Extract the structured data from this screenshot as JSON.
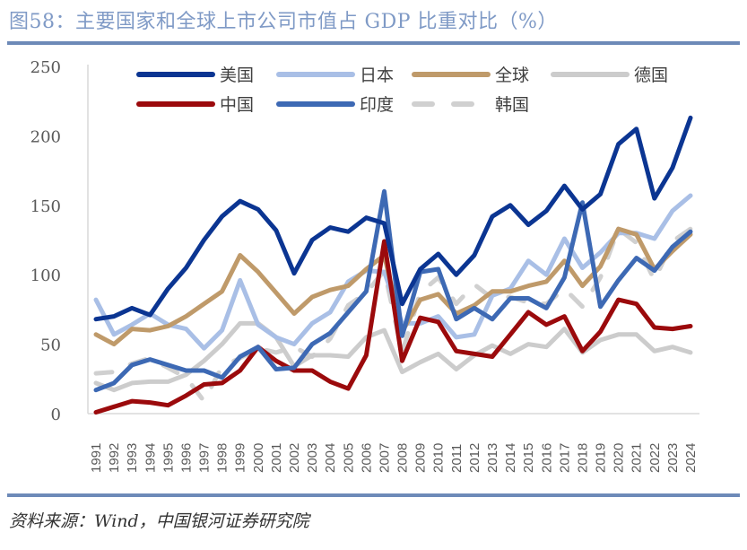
{
  "header": {
    "title": "图58：主要国家和全球上市公司市值占 GDP 比重对比（%）"
  },
  "footer": {
    "source": "资料来源：Wind，中国银河证券研究院"
  },
  "chart_data": {
    "type": "line",
    "title": "图58：主要国家和全球上市公司市值占 GDP 比重对比（%）",
    "xlabel": "",
    "ylabel": "",
    "ylim": [
      0,
      250
    ],
    "yticks": [
      "0",
      "50",
      "100",
      "150",
      "200",
      "250"
    ],
    "ytick_values": [
      0,
      50,
      100,
      150,
      200,
      250
    ],
    "grid": false,
    "legend_position": "top",
    "x": [
      "1991",
      "1992",
      "1993",
      "1994",
      "1995",
      "1996",
      "1997",
      "1998",
      "1999",
      "2000",
      "2001",
      "2002",
      "2003",
      "2004",
      "2005",
      "2006",
      "2007",
      "2008",
      "2009",
      "2010",
      "2011",
      "2012",
      "2013",
      "2014",
      "2015",
      "2016",
      "2017",
      "2018",
      "2019",
      "2020",
      "2021",
      "2022",
      "2023",
      "2024"
    ],
    "series": [
      {
        "name": "美国",
        "color": "#0b3592",
        "dash": false,
        "values": [
          68,
          70,
          76,
          71,
          90,
          105,
          125,
          142,
          153,
          147,
          132,
          101,
          125,
          134,
          131,
          141,
          137,
          79,
          104,
          115,
          100,
          114,
          142,
          150,
          136,
          146,
          164,
          147,
          158,
          194,
          205,
          155,
          177,
          213
        ]
      },
      {
        "name": "日本",
        "color": "#a9bfe6",
        "dash": false,
        "values": [
          82,
          57,
          64,
          72,
          64,
          61,
          47,
          60,
          96,
          64,
          55,
          50,
          65,
          73,
          95,
          103,
          102,
          65,
          65,
          70,
          55,
          57,
          85,
          90,
          110,
          100,
          126,
          105,
          116,
          130,
          130,
          126,
          146,
          157
        ]
      },
      {
        "name": "全球",
        "color": "#bf9a6a",
        "dash": false,
        "values": [
          57,
          50,
          61,
          60,
          63,
          70,
          79,
          88,
          114,
          102,
          87,
          72,
          84,
          89,
          92,
          104,
          114,
          59,
          82,
          86,
          72,
          78,
          88,
          88,
          92,
          95,
          110,
          92,
          106,
          133,
          129,
          104,
          117,
          129
        ]
      },
      {
        "name": "德国",
        "color": "#cccccc",
        "dash": false,
        "values": [
          22,
          17,
          22,
          23,
          23,
          28,
          38,
          50,
          65,
          65,
          55,
          34,
          42,
          42,
          41,
          55,
          60,
          30,
          37,
          43,
          32,
          42,
          49,
          43,
          50,
          48,
          61,
          44,
          53,
          57,
          57,
          45,
          48,
          44
        ]
      },
      {
        "name": "中国",
        "color": "#9b0a0c",
        "dash": false,
        "values": [
          1,
          5,
          9,
          8,
          6,
          13,
          21,
          22,
          31,
          48,
          38,
          31,
          31,
          23,
          18,
          42,
          124,
          38,
          69,
          66,
          45,
          43,
          41,
          57,
          73,
          64,
          70,
          45,
          59,
          82,
          79,
          62,
          61,
          63
        ]
      },
      {
        "name": "印度",
        "color": "#3d69b4",
        "dash": false,
        "values": [
          17,
          22,
          35,
          39,
          35,
          31,
          31,
          26,
          41,
          48,
          32,
          33,
          50,
          58,
          73,
          88,
          160,
          56,
          102,
          104,
          68,
          76,
          68,
          83,
          83,
          76,
          98,
          152,
          77,
          96,
          112,
          103,
          120,
          131
        ]
      },
      {
        "name": "韩国",
        "color": "#d0d0d0",
        "dash": true,
        "values": [
          29,
          30,
          36,
          40,
          33,
          26,
          9,
          34,
          40,
          47,
          44,
          48,
          41,
          54,
          78,
          87,
          103,
          44,
          87,
          98,
          79,
          93,
          83,
          84,
          80,
          79,
          90,
          77,
          98,
          133,
          123,
          96,
          124,
          133
        ]
      }
    ]
  }
}
